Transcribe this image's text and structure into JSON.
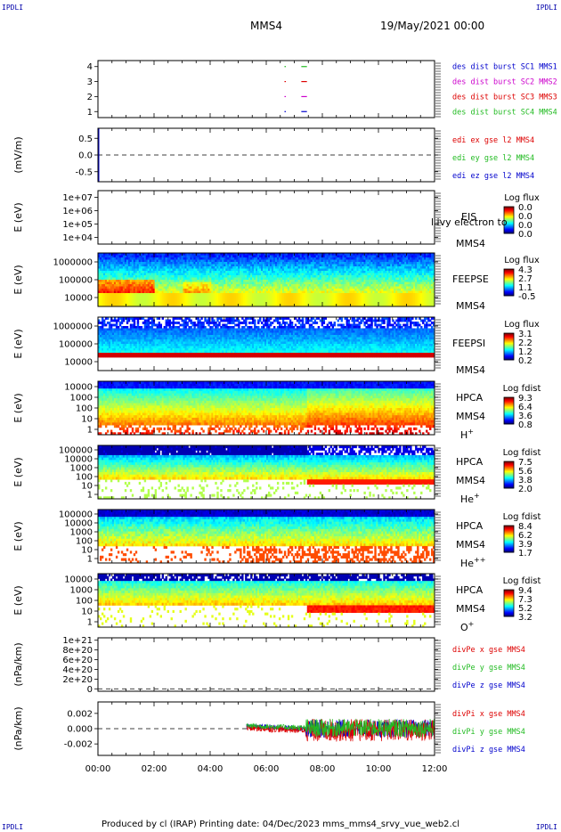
{
  "corner_labels": {
    "top_left": "IPDLI",
    "top_right": "IPDLI",
    "bottom_left": "IPDLI",
    "bottom_right": "IPDLI"
  },
  "header": {
    "spacecraft": "MMS4",
    "date": "19/May/2021 00:00"
  },
  "footer": {
    "text": "Produced by cl (IRAP)   Printing date: 04/Dec/2023   mms_mms4_srvy_vue_web2.cl"
  },
  "time_axis": {
    "ticks": [
      "00:00",
      "02:00",
      "04:00",
      "06:00",
      "08:00",
      "10:00",
      "12:00"
    ],
    "range_hours": [
      0,
      12
    ]
  },
  "chart_data": [
    {
      "type": "scatter",
      "id": "burst",
      "ylabel": "",
      "yticks": [
        "1",
        "2",
        "3",
        "4"
      ],
      "ylim": [
        0.6,
        4.4
      ],
      "series": [
        {
          "name": "des dist burst SC1 MMS1",
          "color": "#0000cc",
          "level": 1,
          "segments": [
            [
              6.65,
              6.7
            ],
            [
              7.25,
              7.45
            ]
          ]
        },
        {
          "name": "des dist burst SC2 MMS2",
          "color": "#cc00cc",
          "level": 2,
          "segments": [
            [
              6.65,
              6.7
            ],
            [
              7.25,
              7.45
            ]
          ]
        },
        {
          "name": "des dist burst SC3 MMS3",
          "color": "#dd0000",
          "level": 3,
          "segments": [
            [
              6.65,
              6.7
            ],
            [
              7.25,
              7.45
            ]
          ]
        },
        {
          "name": "des dist burst SC4 MMS4",
          "color": "#22bb22",
          "level": 4,
          "segments": [
            [
              6.65,
              6.7
            ],
            [
              7.25,
              7.45
            ]
          ]
        }
      ]
    },
    {
      "type": "line",
      "id": "edi",
      "ylabel": "(mV/m)",
      "yticks": [
        "0.5",
        "0.0",
        "-0.5"
      ],
      "ylim": [
        -0.8,
        0.8
      ],
      "series": [
        {
          "name": "edi ex gse l2 MMS4",
          "color": "#dd0000"
        },
        {
          "name": "edi ey gse l2 MMS4",
          "color": "#22bb22"
        },
        {
          "name": "edi ez gse l2 MMS4",
          "color": "#0000cc"
        }
      ]
    },
    {
      "type": "heatmap",
      "id": "eis",
      "ylabel": "E (eV)",
      "yticks": [
        "1e+07",
        "1e+06",
        "1e+05",
        "1e+04"
      ],
      "scale": "log",
      "instrument": "EIS",
      "subtitle": "l ivy electron to",
      "spacecraft": "MMS4",
      "colorbar": {
        "title": "Log flux",
        "ticks": [
          "0.0",
          "0.0",
          "0.0",
          "0.0"
        ]
      }
    },
    {
      "type": "heatmap",
      "id": "feeps_e",
      "ylabel": "E (eV)",
      "yticks": [
        "1000000",
        "100000",
        "10000"
      ],
      "scale": "log",
      "instrument": "FEEPSE",
      "spacecraft": "MMS4",
      "colorbar": {
        "title": "Log flux",
        "ticks": [
          "4.3",
          "2.7",
          "1.1",
          "-0.5"
        ]
      }
    },
    {
      "type": "heatmap",
      "id": "feeps_i",
      "ylabel": "E (eV)",
      "yticks": [
        "1000000",
        "100000",
        "10000"
      ],
      "scale": "log",
      "instrument": "FEEPSI",
      "spacecraft": "MMS4",
      "colorbar": {
        "title": "Log flux",
        "ticks": [
          "3.1",
          "2.2",
          "1.2",
          "0.2"
        ]
      }
    },
    {
      "type": "heatmap",
      "id": "hpca_h",
      "ylabel": "E (eV)",
      "yticks": [
        "10000",
        "1000",
        "100",
        "10",
        "1"
      ],
      "scale": "log",
      "instrument": "HPCA",
      "spacecraft": "MMS4",
      "species": "H",
      "species_charge": "+",
      "colorbar": {
        "title": "Log fdist",
        "ticks": [
          "9.3",
          "6.4",
          "3.6",
          "0.8"
        ]
      }
    },
    {
      "type": "heatmap",
      "id": "hpca_he",
      "ylabel": "E (eV)",
      "yticks": [
        "100000",
        "10000",
        "1000",
        "100",
        "10",
        "1"
      ],
      "scale": "log",
      "instrument": "HPCA",
      "spacecraft": "MMS4",
      "species": "He",
      "species_charge": "+",
      "colorbar": {
        "title": "Log fdist",
        "ticks": [
          "7.5",
          "5.6",
          "3.8",
          "2.0"
        ]
      }
    },
    {
      "type": "heatmap",
      "id": "hpca_hepp",
      "ylabel": "E (eV)",
      "yticks": [
        "100000",
        "10000",
        "1000",
        "100",
        "10",
        "1"
      ],
      "scale": "log",
      "instrument": "HPCA",
      "spacecraft": "MMS4",
      "species": "He",
      "species_charge": "++",
      "colorbar": {
        "title": "Log fdist",
        "ticks": [
          "8.4",
          "6.2",
          "3.9",
          "1.7"
        ]
      }
    },
    {
      "type": "heatmap",
      "id": "hpca_o",
      "ylabel": "E (eV)",
      "yticks": [
        "10000",
        "1000",
        "100",
        "10",
        "1"
      ],
      "scale": "log",
      "instrument": "HPCA",
      "spacecraft": "MMS4",
      "species": "O",
      "species_charge": "+",
      "colorbar": {
        "title": "Log fdist",
        "ticks": [
          "9.4",
          "7.3",
          "5.2",
          "3.2"
        ]
      }
    },
    {
      "type": "line",
      "id": "divpe",
      "ylabel": "(nPa/km)",
      "yticks": [
        "1e+21",
        "8e+20",
        "6e+20",
        "4e+20",
        "2e+20",
        "0"
      ],
      "ylim": [
        -5e+19,
        1.05e+21
      ],
      "series": [
        {
          "name": "divPe x gse MMS4",
          "color": "#dd0000"
        },
        {
          "name": "divPe y gse MMS4",
          "color": "#22bb22"
        },
        {
          "name": "divPe z gse MMS4",
          "color": "#0000cc"
        }
      ]
    },
    {
      "type": "line",
      "id": "divpi",
      "ylabel": "(nPa/km)",
      "yticks": [
        "0.002",
        "0.000",
        "-0.002"
      ],
      "ylim": [
        -0.0035,
        0.0035
      ],
      "data_start_hour": 5.3,
      "burst_start_hour": 7.4,
      "series": [
        {
          "name": "divPi x gse MMS4",
          "color": "#dd0000"
        },
        {
          "name": "divPi y gse MMS4",
          "color": "#22bb22"
        },
        {
          "name": "divPi z gse MMS4",
          "color": "#0000cc"
        }
      ]
    }
  ]
}
